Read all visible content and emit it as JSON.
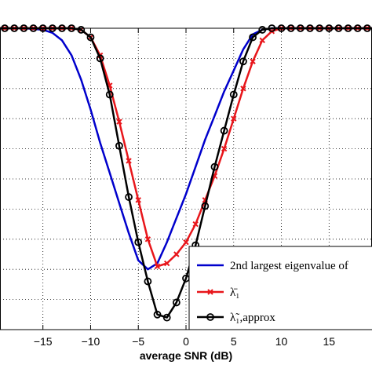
{
  "chart_data": {
    "type": "line",
    "title": "",
    "xlabel": "average SNR (dB)",
    "ylabel": "",
    "xlim": [
      -19.5,
      19.5
    ],
    "ylim": [
      0,
      1
    ],
    "grid": true,
    "legend_position": "bottom-right",
    "x_ticks": [
      -15,
      -10,
      -5,
      0,
      5,
      10,
      15
    ],
    "x_tick_labels": [
      "−15",
      "−10",
      "−5",
      "0",
      "5",
      "10",
      "15"
    ],
    "y_gridlines": [
      0.1,
      0.2,
      0.3,
      0.4,
      0.5,
      0.6,
      0.7,
      0.8,
      0.9
    ],
    "series": [
      {
        "name": "2nd largest eigenvalue",
        "name_suffix": "of",
        "color": "#0000cc",
        "marker": "none",
        "x": [
          -20,
          -17,
          -15,
          -14,
          -13,
          -12,
          -11,
          -10,
          -9,
          -8,
          -7,
          -6,
          -5,
          -4,
          -3,
          -2,
          -1,
          0,
          1,
          2,
          3,
          4,
          5,
          6,
          7,
          8,
          9,
          10,
          20
        ],
        "y": [
          1.0,
          1.0,
          0.995,
          0.985,
          0.96,
          0.91,
          0.83,
          0.73,
          0.62,
          0.52,
          0.42,
          0.32,
          0.23,
          0.2,
          0.22,
          0.29,
          0.37,
          0.45,
          0.54,
          0.63,
          0.71,
          0.79,
          0.86,
          0.93,
          0.98,
          0.995,
          1.0,
          1.0,
          1.0
        ]
      },
      {
        "name": "λ̄₁",
        "color": "#e8161b",
        "marker": "x",
        "x": [
          -20,
          -19,
          -18,
          -17,
          -16,
          -15,
          -14,
          -13,
          -12,
          -11,
          -10,
          -9,
          -8,
          -7,
          -6,
          -5,
          -4,
          -3,
          -2,
          -1,
          0,
          1,
          2,
          3,
          4,
          5,
          6,
          7,
          8,
          9,
          10,
          11,
          12,
          13,
          14,
          15,
          16,
          17,
          18,
          19,
          20
        ],
        "y": [
          1.0,
          1.0,
          1.0,
          1.0,
          1.0,
          1.0,
          1.0,
          1.0,
          1.0,
          0.995,
          0.97,
          0.91,
          0.81,
          0.69,
          0.56,
          0.43,
          0.3,
          0.21,
          0.22,
          0.25,
          0.29,
          0.35,
          0.43,
          0.51,
          0.6,
          0.7,
          0.8,
          0.89,
          0.96,
          0.99,
          1.0,
          1.0,
          1.0,
          1.0,
          1.0,
          1.0,
          1.0,
          1.0,
          1.0,
          1.0,
          1.0
        ]
      },
      {
        "name": "λ̃₁,approx",
        "color": "#000000",
        "marker": "o",
        "x": [
          -20,
          -19,
          -18,
          -17,
          -16,
          -15,
          -14,
          -13,
          -12,
          -11,
          -10,
          -9,
          -8,
          -7,
          -6,
          -5,
          -4,
          -3,
          -2,
          -1,
          0,
          1,
          2,
          3,
          4,
          5,
          6,
          7,
          8,
          9,
          10,
          11,
          12,
          13,
          14,
          15,
          16,
          17,
          18,
          19,
          20
        ],
        "y": [
          1.0,
          1.0,
          1.0,
          1.0,
          1.0,
          1.0,
          1.0,
          1.0,
          1.0,
          0.995,
          0.97,
          0.9,
          0.78,
          0.61,
          0.44,
          0.29,
          0.16,
          0.05,
          0.04,
          0.09,
          0.17,
          0.28,
          0.41,
          0.54,
          0.66,
          0.78,
          0.89,
          0.97,
          0.995,
          1.0,
          1.0,
          1.0,
          1.0,
          1.0,
          1.0,
          1.0,
          1.0,
          1.0,
          1.0,
          1.0,
          1.0
        ]
      }
    ]
  }
}
